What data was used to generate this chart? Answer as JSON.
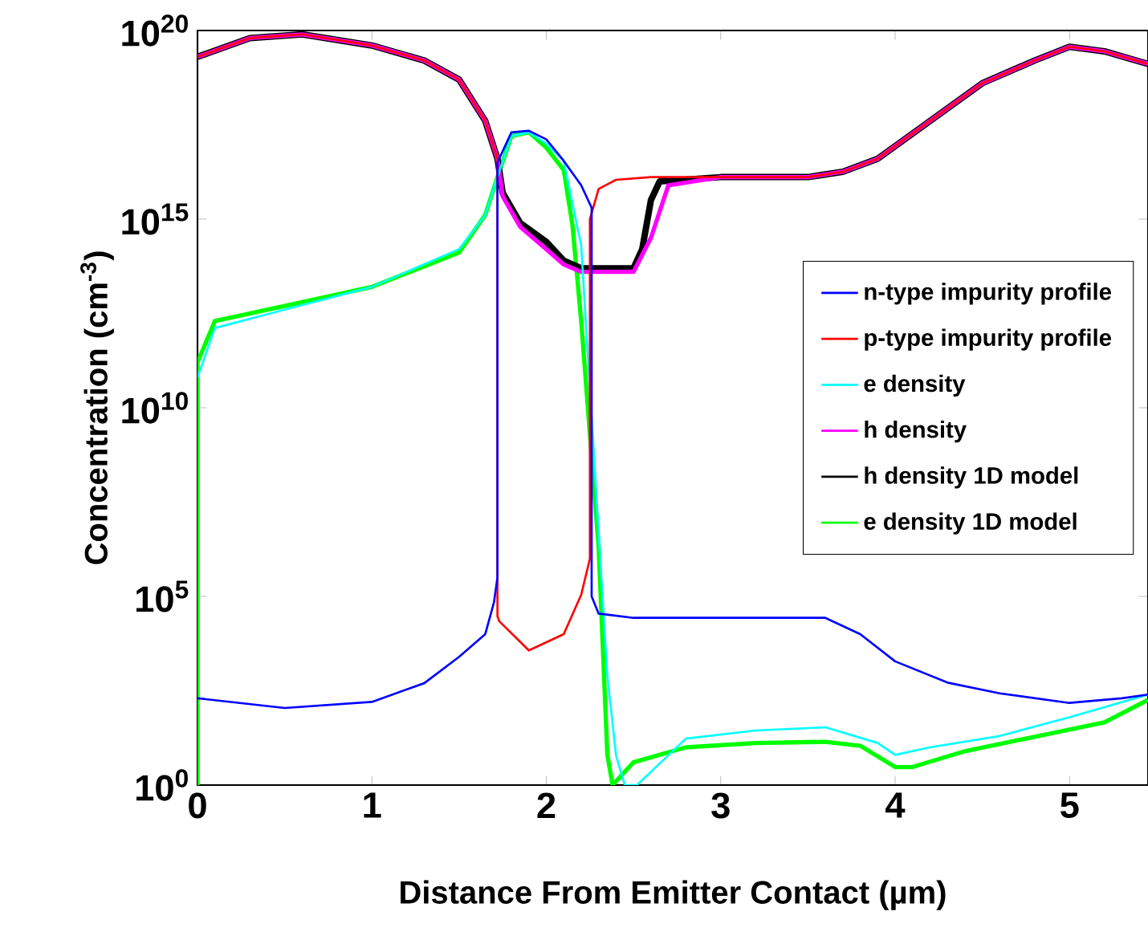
{
  "chart_data": {
    "type": "line",
    "xlabel": "Distance From Emitter Contact (µm)",
    "ylabel": "Concentration (cm$^{-3}$)",
    "log": "y",
    "grid": false,
    "legend": "right",
    "marker": "none",
    "line_style": "solid",
    "xlim": [
      0,
      5.45
    ],
    "xticks": [
      0,
      1,
      2,
      3,
      4,
      5
    ],
    "ylim": [
      1,
      1e+20
    ],
    "yticks": [
      {
        "value": 1,
        "label": "10$^{0}$"
      },
      {
        "value": 100000.0,
        "label": "10$^{5}$"
      },
      {
        "value": 10000000000.0,
        "label": "10$^{10}$"
      },
      {
        "value": 1000000000000000.0,
        "label": "10$^{15}$"
      },
      {
        "value": 1e+20,
        "label": "10$^{20}$"
      }
    ],
    "series": [
      {
        "name": "n-type impurity profile",
        "color": "#0000ff",
        "x": [
          0,
          0.5,
          1.0,
          1.3,
          1.5,
          1.65,
          1.7,
          1.72,
          1.72,
          1.8,
          1.9,
          2.0,
          2.1,
          2.2,
          2.26,
          2.26,
          2.3,
          2.5,
          3.0,
          3.6,
          3.8,
          4.0,
          4.3,
          4.6,
          5.0,
          5.3,
          5.45
        ],
        "values": [
          200,
          110,
          160,
          500,
          2500,
          10000.0,
          70000.0,
          320000.0,
          3.2e+16,
          2e+17,
          2.2e+17,
          1.3e+17,
          3.5e+16,
          7900000000000000.0,
          2000000000000000.0,
          100000.0,
          35000.0,
          27000.0,
          27000.0,
          27000.0,
          10000.0,
          1900,
          520,
          270,
          150,
          200,
          250
        ]
      },
      {
        "name": "p-type impurity profile",
        "color": "#ff0000",
        "x": [
          0,
          0.3,
          0.6,
          1.0,
          1.3,
          1.5,
          1.65,
          1.72,
          1.72,
          1.73,
          1.9,
          2.1,
          2.2,
          2.25,
          2.25,
          2.3,
          2.4,
          2.6,
          3.0,
          3.5,
          3.7,
          3.9,
          4.2,
          4.5,
          4.8,
          5.0,
          5.2,
          5.45
        ],
        "values": [
          2e+19,
          6.3e+19,
          7.9e+19,
          4e+19,
          1.6e+19,
          5e+18,
          4e+17,
          4e+16,
          30000.0,
          22000.0,
          3700.0,
          10000.0,
          110000.0,
          1000000.0,
          1000000000000000.0,
          6300000000000000.0,
          1.1e+16,
          1.3e+16,
          1.3e+16,
          1.3e+16,
          1.8e+16,
          4e+16,
          4e+17,
          4e+18,
          1.6e+19,
          3.7e+19,
          2.8e+19,
          1.3e+19
        ]
      },
      {
        "name": "e density",
        "color": "#00ffff",
        "x": [
          0,
          0.1,
          0.5,
          1.0,
          1.5,
          1.65,
          1.72,
          1.8,
          1.9,
          2.0,
          2.1,
          2.2,
          2.3,
          2.35,
          2.4,
          2.45,
          2.52,
          2.8,
          3.2,
          3.6,
          3.9,
          4.0,
          4.2,
          4.6,
          5.0,
          5.45
        ],
        "values": [
          63000000000.0,
          1300000000000.0,
          4000000000000.0,
          16000000000000.0,
          160000000000000.0,
          1300000000000000.0,
          1.3e+16,
          1.6e+17,
          2e+17,
          1e+17,
          3.5e+16,
          200000000000000.0,
          5000000.0,
          800,
          6,
          1,
          1,
          17,
          28,
          34,
          13,
          6.3,
          10,
          20,
          63,
          250
        ]
      },
      {
        "name": "h density",
        "color": "#ff00ff",
        "x": [
          0,
          0.3,
          0.6,
          1.0,
          1.3,
          1.5,
          1.65,
          1.72,
          1.75,
          1.85,
          2.0,
          2.1,
          2.2,
          2.5,
          2.6,
          2.7,
          3.0,
          3.5,
          3.7,
          3.9,
          4.2,
          4.5,
          4.8,
          5.0,
          5.2,
          5.45
        ],
        "values": [
          2e+19,
          6.3e+19,
          7.9e+19,
          4e+19,
          1.6e+19,
          5e+18,
          4e+17,
          4e+16,
          4000000000000000.0,
          630000000000000.0,
          160000000000000.0,
          63000000000000.0,
          40000000000000.0,
          40000000000000.0,
          320000000000000.0,
          7900000000000000.0,
          1.3e+16,
          1.3e+16,
          1.8e+16,
          4e+16,
          4e+17,
          4e+18,
          1.6e+19,
          3.7e+19,
          2.8e+19,
          1.3e+19
        ]
      },
      {
        "name": "h density 1D model",
        "color": "#000000",
        "x": [
          0,
          0.3,
          0.6,
          1.0,
          1.3,
          1.5,
          1.65,
          1.72,
          1.75,
          1.85,
          2.0,
          2.1,
          2.2,
          2.5,
          2.55,
          2.6,
          2.65,
          3.0,
          3.5,
          3.7,
          3.9,
          4.2,
          4.5,
          4.8,
          5.0,
          5.2,
          5.45
        ],
        "values": [
          2e+19,
          6.3e+19,
          7.9e+19,
          4e+19,
          1.6e+19,
          5e+18,
          4e+17,
          4e+16,
          5000000000000000.0,
          790000000000000.0,
          250000000000000.0,
          79000000000000.0,
          50000000000000.0,
          50000000000000.0,
          160000000000000.0,
          3200000000000000.0,
          1e+16,
          1.3e+16,
          1.3e+16,
          1.8e+16,
          4e+16,
          4e+17,
          4e+18,
          1.6e+19,
          3.7e+19,
          2.8e+19,
          1.3e+19
        ]
      },
      {
        "name": "e density 1D model",
        "color": "#00ff00",
        "x": [
          0,
          0,
          0.1,
          0.5,
          1.0,
          1.5,
          1.65,
          1.72,
          1.8,
          1.9,
          2.0,
          2.1,
          2.15,
          2.2,
          2.3,
          2.35,
          2.38,
          2.5,
          2.8,
          3.2,
          3.6,
          3.8,
          4.0,
          4.1,
          4.4,
          4.8,
          5.2,
          5.45
        ],
        "values": [
          1,
          160000000000.0,
          2000000000000.0,
          5000000000000.0,
          16000000000000.0,
          130000000000000.0,
          1300000000000000.0,
          1.3e+16,
          1.6e+17,
          2e+17,
          7.9e+16,
          2e+16,
          700000000000000.0,
          2000000000000.0,
          2000000.0,
          6.3,
          1,
          4,
          10,
          13,
          14,
          11,
          3,
          3,
          7.9,
          19,
          46,
          180
        ]
      }
    ]
  }
}
